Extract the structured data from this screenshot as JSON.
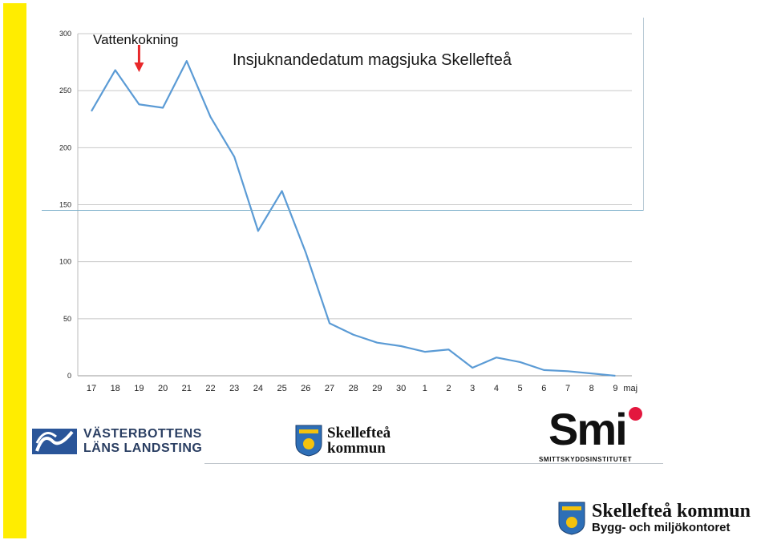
{
  "chart_data": {
    "type": "line",
    "title": "Insjuknandedatum magsjuka Skellefteå",
    "annotation": "Vattenkokning",
    "categories": [
      "17",
      "18",
      "19",
      "20",
      "21",
      "22",
      "23",
      "24",
      "25",
      "26",
      "27",
      "28",
      "29",
      "30",
      "1",
      "2",
      "3",
      "4",
      "5",
      "6",
      "7",
      "8",
      "9"
    ],
    "x_unit_label": "maj",
    "values": [
      232,
      268,
      238,
      235,
      276,
      227,
      192,
      127,
      162,
      108,
      46,
      36,
      29,
      26,
      21,
      23,
      7,
      16,
      12,
      5,
      4,
      2,
      0
    ],
    "ylim": [
      0,
      300
    ],
    "yticks": [
      0,
      50,
      100,
      150,
      200,
      250,
      300
    ],
    "grid": true,
    "line_color": "#5b9bd5",
    "arrow_color": "#e8282a"
  },
  "logos": {
    "vll_line1": "VÄSTERBOTTENS",
    "vll_line2": "LÄNS LANDSTING",
    "sk_line1": "Skellefteå",
    "sk_line2": "kommun",
    "smi_name": "Smi",
    "smi_full": "SMITTSKYDDSINSTITUTET",
    "sk2_name": "Skellefteå kommun",
    "sk2_dept": "Bygg- och miljökontoret"
  }
}
